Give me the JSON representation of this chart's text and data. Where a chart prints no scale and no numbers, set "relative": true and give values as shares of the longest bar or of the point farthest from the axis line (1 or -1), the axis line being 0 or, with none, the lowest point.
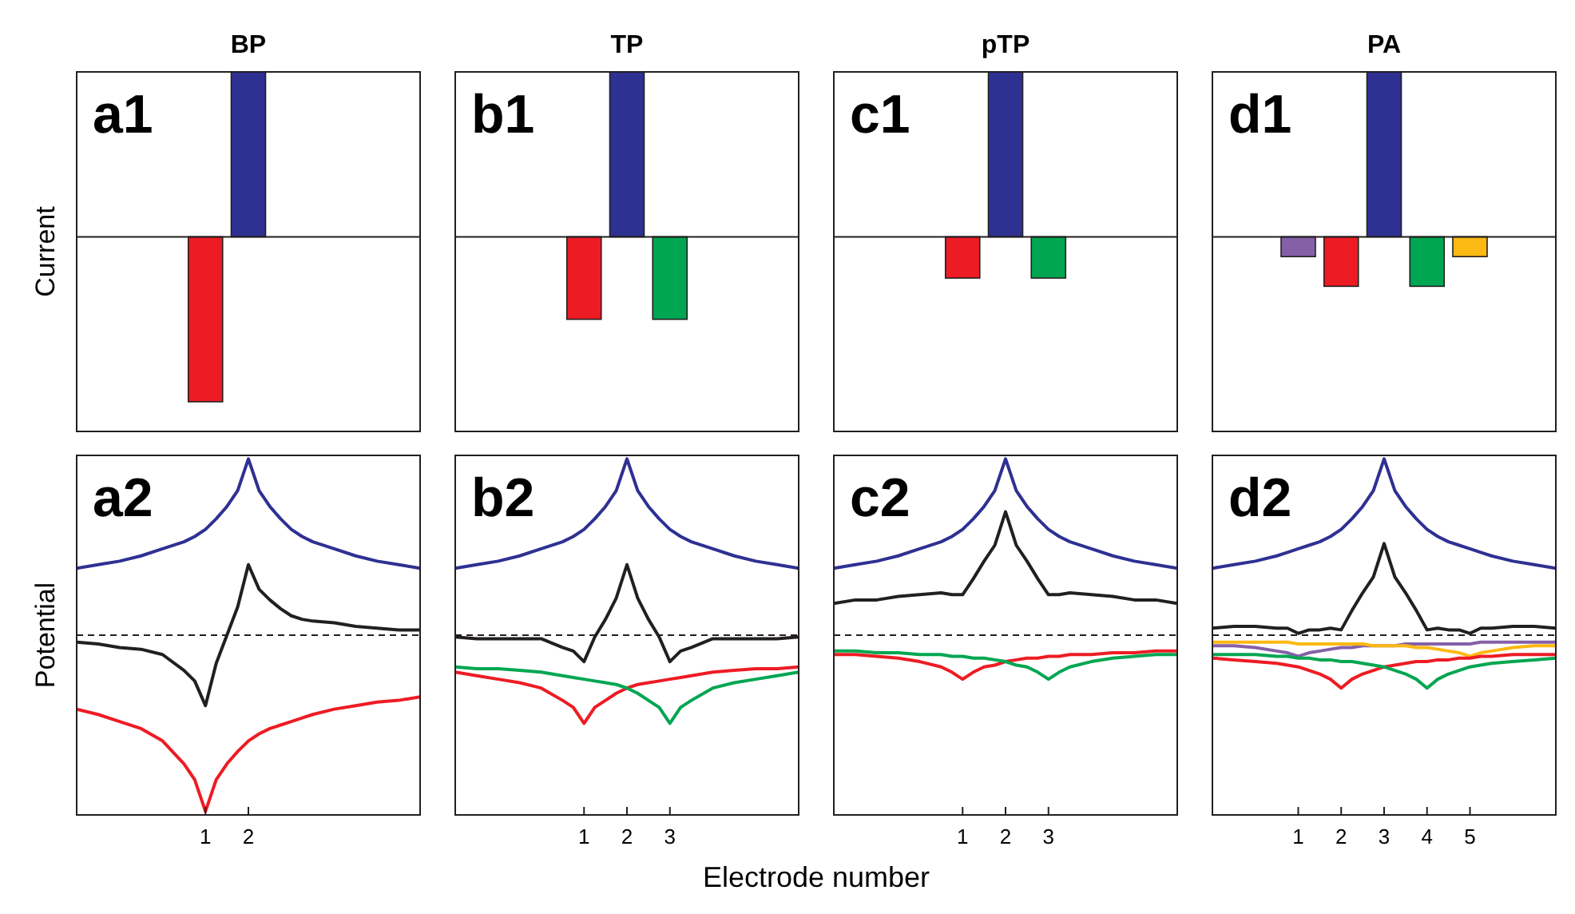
{
  "chart_data": [
    {
      "type": "bar",
      "title": "BP",
      "ylabel": "Current",
      "annotations": [
        "a1"
      ],
      "x": [
        1,
        2
      ],
      "values": [
        -1,
        1
      ],
      "colors": [
        "#ed1c24",
        "#2e3192"
      ],
      "xlim": [
        -2,
        6
      ],
      "relative": true,
      "tick_labels": false
    },
    {
      "type": "bar",
      "title": "TP",
      "annotations": [
        "b1"
      ],
      "x": [
        1,
        2,
        3
      ],
      "values": [
        -0.5,
        1,
        -0.5
      ],
      "colors": [
        "#ed1c24",
        "#2e3192",
        "#00a651"
      ],
      "xlim": [
        -2,
        6
      ],
      "relative": true,
      "tick_labels": false
    },
    {
      "type": "bar",
      "title": "pTP",
      "annotations": [
        "c1"
      ],
      "x": [
        1,
        2,
        3
      ],
      "values": [
        -0.25,
        1,
        -0.25
      ],
      "colors": [
        "#ed1c24",
        "#2e3192",
        "#00a651"
      ],
      "xlim": [
        -2,
        6
      ],
      "relative": true,
      "tick_labels": false
    },
    {
      "type": "bar",
      "title": "PA",
      "annotations": [
        "d1"
      ],
      "x": [
        1,
        2,
        3,
        4,
        5
      ],
      "values": [
        -0.12,
        -0.3,
        1,
        -0.3,
        -0.12
      ],
      "colors": [
        "#8560a8",
        "#ed1c24",
        "#2e3192",
        "#00a651",
        "#fdb913"
      ],
      "xlim": [
        -1,
        7
      ],
      "relative": true,
      "tick_labels": false
    },
    {
      "type": "line",
      "ylabel": "Potential",
      "annotations": [
        "a2"
      ],
      "xlim": [
        -2,
        6
      ],
      "xticks": [
        1,
        2
      ],
      "tick_labels": "x",
      "relative": true,
      "ref_lines": [
        {
          "axis": "y",
          "value": 0,
          "line_style": "dashed",
          "color": "#231f20"
        }
      ],
      "x": [
        -2,
        -1.5,
        -1,
        -0.5,
        0,
        0.5,
        0.75,
        1,
        1.25,
        1.5,
        1.75,
        2,
        2.25,
        2.5,
        2.75,
        3,
        3.25,
        3.5,
        4,
        4.5,
        5,
        5.5,
        6
      ],
      "series": [
        {
          "color": "#2e3192",
          "values": [
            0.38,
            0.4,
            0.42,
            0.45,
            0.49,
            0.53,
            0.56,
            0.6,
            0.66,
            0.73,
            0.82,
            1,
            0.82,
            0.73,
            0.66,
            0.6,
            0.56,
            0.53,
            0.49,
            0.45,
            0.42,
            0.4,
            0.38
          ]
        },
        {
          "color": "#231f20",
          "values": [
            -0.04,
            -0.05,
            -0.07,
            -0.08,
            -0.11,
            -0.2,
            -0.26,
            -0.4,
            -0.16,
            0,
            0.16,
            0.4,
            0.26,
            0.2,
            0.15,
            0.11,
            0.09,
            0.08,
            0.07,
            0.05,
            0.04,
            0.03,
            0.03
          ]
        },
        {
          "color": "#ed1c24",
          "values": [
            -0.42,
            -0.45,
            -0.49,
            -0.53,
            -0.6,
            -0.73,
            -0.82,
            -1,
            -0.82,
            -0.73,
            -0.66,
            -0.6,
            -0.56,
            -0.53,
            -0.51,
            -0.49,
            -0.47,
            -0.45,
            -0.42,
            -0.4,
            -0.38,
            -0.37,
            -0.35
          ]
        }
      ]
    },
    {
      "type": "line",
      "xlabel": "Electrode number",
      "annotations": [
        "b2"
      ],
      "xlim": [
        -2,
        6
      ],
      "xticks": [
        1,
        2,
        3
      ],
      "tick_labels": "x",
      "relative": true,
      "ref_lines": [
        {
          "axis": "y",
          "value": 0,
          "line_style": "dashed",
          "color": "#231f20"
        }
      ],
      "x": [
        -2,
        -1.5,
        -1,
        -0.5,
        0,
        0.5,
        0.75,
        1,
        1.25,
        1.5,
        1.75,
        2,
        2.25,
        2.5,
        2.75,
        3,
        3.25,
        3.5,
        4,
        4.5,
        5,
        5.5,
        6
      ],
      "series": [
        {
          "color": "#2e3192",
          "values": [
            0.38,
            0.4,
            0.42,
            0.45,
            0.49,
            0.53,
            0.56,
            0.6,
            0.66,
            0.73,
            0.82,
            1,
            0.82,
            0.73,
            0.66,
            0.6,
            0.56,
            0.53,
            0.49,
            0.45,
            0.42,
            0.4,
            0.38
          ]
        },
        {
          "color": "#231f20",
          "values": [
            -0.01,
            -0.02,
            -0.02,
            -0.02,
            -0.02,
            -0.07,
            -0.09,
            -0.15,
            -0.01,
            0.09,
            0.21,
            0.4,
            0.21,
            0.09,
            -0.01,
            -0.15,
            -0.09,
            -0.07,
            -0.02,
            -0.02,
            -0.02,
            -0.02,
            -0.01
          ]
        },
        {
          "color": "#ed1c24",
          "values": [
            -0.21,
            -0.23,
            -0.25,
            -0.27,
            -0.3,
            -0.37,
            -0.41,
            -0.5,
            -0.41,
            -0.37,
            -0.33,
            -0.3,
            -0.28,
            -0.27,
            -0.26,
            -0.25,
            -0.24,
            -0.23,
            -0.21,
            -0.2,
            -0.19,
            -0.19,
            -0.18
          ]
        },
        {
          "color": "#00a651",
          "values": [
            -0.18,
            -0.19,
            -0.19,
            -0.2,
            -0.21,
            -0.23,
            -0.24,
            -0.25,
            -0.26,
            -0.27,
            -0.28,
            -0.3,
            -0.33,
            -0.37,
            -0.41,
            -0.5,
            -0.41,
            -0.37,
            -0.3,
            -0.27,
            -0.25,
            -0.23,
            -0.21
          ]
        }
      ]
    },
    {
      "type": "line",
      "annotations": [
        "c2"
      ],
      "xlim": [
        -2,
        6
      ],
      "xticks": [
        1,
        2,
        3
      ],
      "tick_labels": "x",
      "relative": true,
      "ref_lines": [
        {
          "axis": "y",
          "value": 0,
          "line_style": "dashed",
          "color": "#231f20"
        }
      ],
      "x": [
        -2,
        -1.5,
        -1,
        -0.5,
        0,
        0.5,
        0.75,
        1,
        1.25,
        1.5,
        1.75,
        2,
        2.25,
        2.5,
        2.75,
        3,
        3.25,
        3.5,
        4,
        4.5,
        5,
        5.5,
        6
      ],
      "series": [
        {
          "color": "#2e3192",
          "values": [
            0.38,
            0.4,
            0.42,
            0.45,
            0.49,
            0.53,
            0.56,
            0.6,
            0.66,
            0.73,
            0.82,
            1,
            0.82,
            0.73,
            0.66,
            0.6,
            0.56,
            0.53,
            0.49,
            0.45,
            0.42,
            0.4,
            0.38
          ]
        },
        {
          "color": "#231f20",
          "values": [
            0.18,
            0.2,
            0.2,
            0.22,
            0.23,
            0.24,
            0.23,
            0.23,
            0.32,
            0.42,
            0.51,
            0.7,
            0.51,
            0.42,
            0.32,
            0.23,
            0.23,
            0.24,
            0.23,
            0.22,
            0.2,
            0.2,
            0.18
          ]
        },
        {
          "color": "#ed1c24",
          "values": [
            -0.11,
            -0.11,
            -0.12,
            -0.13,
            -0.15,
            -0.18,
            -0.21,
            -0.25,
            -0.21,
            -0.18,
            -0.17,
            -0.15,
            -0.14,
            -0.13,
            -0.13,
            -0.12,
            -0.12,
            -0.11,
            -0.11,
            -0.1,
            -0.1,
            -0.09,
            -0.09
          ]
        },
        {
          "color": "#00a651",
          "values": [
            -0.09,
            -0.09,
            -0.1,
            -0.1,
            -0.11,
            -0.11,
            -0.12,
            -0.12,
            -0.13,
            -0.13,
            -0.14,
            -0.15,
            -0.17,
            -0.18,
            -0.21,
            -0.25,
            -0.21,
            -0.18,
            -0.15,
            -0.13,
            -0.12,
            -0.11,
            -0.11
          ]
        }
      ]
    },
    {
      "type": "line",
      "annotations": [
        "d2"
      ],
      "xlim": [
        -1,
        7
      ],
      "xticks": [
        1,
        2,
        3,
        4,
        5
      ],
      "tick_labels": "x",
      "relative": true,
      "ref_lines": [
        {
          "axis": "y",
          "value": 0,
          "line_style": "dashed",
          "color": "#231f20"
        }
      ],
      "x": [
        -1,
        -0.5,
        0,
        0.5,
        0.75,
        1,
        1.25,
        1.5,
        1.75,
        2,
        2.25,
        2.5,
        2.75,
        3,
        3.25,
        3.5,
        3.75,
        4,
        4.25,
        4.5,
        4.75,
        5,
        5.25,
        5.5,
        6,
        6.5,
        7
      ],
      "series": [
        {
          "color": "#2e3192",
          "values": [
            0.38,
            0.4,
            0.42,
            0.45,
            0.47,
            0.49,
            0.51,
            0.53,
            0.56,
            0.6,
            0.66,
            0.73,
            0.82,
            1,
            0.82,
            0.73,
            0.66,
            0.6,
            0.56,
            0.53,
            0.51,
            0.49,
            0.47,
            0.45,
            0.42,
            0.4,
            0.38
          ]
        },
        {
          "color": "#231f20",
          "values": [
            0.04,
            0.05,
            0.05,
            0.04,
            0.04,
            0.01,
            0.03,
            0.03,
            0.04,
            0.03,
            0.14,
            0.24,
            0.33,
            0.52,
            0.33,
            0.24,
            0.14,
            0.03,
            0.04,
            0.03,
            0.03,
            0.01,
            0.04,
            0.04,
            0.05,
            0.05,
            0.04
          ]
        },
        {
          "color": "#8560a8",
          "values": [
            -0.06,
            -0.06,
            -0.07,
            -0.09,
            -0.1,
            -0.12,
            -0.1,
            -0.09,
            -0.08,
            -0.07,
            -0.07,
            -0.06,
            -0.06,
            -0.06,
            -0.06,
            -0.05,
            -0.05,
            -0.05,
            -0.05,
            -0.05,
            -0.05,
            -0.05,
            -0.04,
            -0.04,
            -0.04,
            -0.04,
            -0.04
          ]
        },
        {
          "color": "#fdb913",
          "values": [
            -0.04,
            -0.04,
            -0.04,
            -0.04,
            -0.04,
            -0.05,
            -0.05,
            -0.05,
            -0.05,
            -0.05,
            -0.05,
            -0.05,
            -0.06,
            -0.06,
            -0.06,
            -0.06,
            -0.07,
            -0.07,
            -0.08,
            -0.09,
            -0.1,
            -0.12,
            -0.1,
            -0.09,
            -0.07,
            -0.06,
            -0.06
          ]
        },
        {
          "color": "#ed1c24",
          "values": [
            -0.13,
            -0.14,
            -0.15,
            -0.16,
            -0.17,
            -0.18,
            -0.2,
            -0.22,
            -0.25,
            -0.3,
            -0.25,
            -0.22,
            -0.2,
            -0.18,
            -0.17,
            -0.16,
            -0.15,
            -0.15,
            -0.14,
            -0.14,
            -0.13,
            -0.13,
            -0.12,
            -0.12,
            -0.11,
            -0.11,
            -0.11
          ]
        },
        {
          "color": "#00a651",
          "values": [
            -0.11,
            -0.11,
            -0.11,
            -0.12,
            -0.12,
            -0.13,
            -0.13,
            -0.14,
            -0.14,
            -0.15,
            -0.15,
            -0.16,
            -0.17,
            -0.18,
            -0.2,
            -0.22,
            -0.25,
            -0.3,
            -0.25,
            -0.22,
            -0.2,
            -0.18,
            -0.17,
            -0.16,
            -0.15,
            -0.14,
            -0.13
          ]
        }
      ]
    }
  ]
}
